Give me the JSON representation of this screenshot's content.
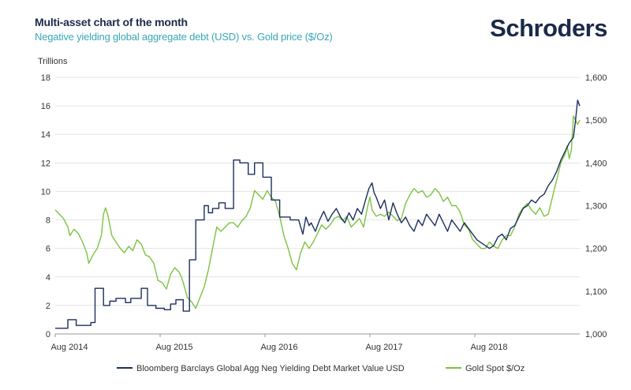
{
  "header": {
    "title": "Multi-asset chart of the month",
    "subtitle": "Negative yielding global aggregate debt (USD) vs. Gold price ($/Oz)",
    "brand": "Schroders"
  },
  "chart_data": {
    "type": "line",
    "title": "Multi-asset chart of the month",
    "subtitle": "Negative yielding global aggregate debt (USD) vs. Gold price ($/Oz)",
    "y_left_label": "Trillions",
    "y_left_lim": [
      0,
      18
    ],
    "y_left_ticks": [
      "0",
      "2",
      "4",
      "6",
      "8",
      "10",
      "12",
      "14",
      "16",
      "18"
    ],
    "y_right_lim": [
      1000,
      1600
    ],
    "y_right_ticks": [
      "1,000",
      "1,100",
      "1,200",
      "1,300",
      "1,400",
      "1,500",
      "1,600"
    ],
    "x_range": [
      2014.58,
      2019.58
    ],
    "x_ticks": [
      {
        "label": "Aug 2014",
        "x": 2014.58
      },
      {
        "label": "Aug 2015",
        "x": 2015.58
      },
      {
        "label": "Aug 2016",
        "x": 2016.58
      },
      {
        "label": "Aug 2017",
        "x": 2017.58
      },
      {
        "label": "Aug 2018",
        "x": 2018.58
      }
    ],
    "grid": true,
    "series": [
      {
        "name": "Bloomberg Barclays Global Agg Neg Yielding Debt Market Value USD",
        "color": "#1c2f5e",
        "axis": "left",
        "x": [
          2014.58,
          2014.66,
          2014.7,
          2014.7,
          2014.78,
          2014.78,
          2014.92,
          2014.92,
          2014.96,
          2014.96,
          2015.04,
          2015.04,
          2015.1,
          2015.1,
          2015.16,
          2015.16,
          2015.25,
          2015.25,
          2015.3,
          2015.3,
          2015.4,
          2015.4,
          2015.46,
          2015.46,
          2015.54,
          2015.54,
          2015.62,
          2015.62,
          2015.68,
          2015.68,
          2015.73,
          2015.73,
          2015.8,
          2015.8,
          2015.86,
          2015.86,
          2015.92,
          2015.92,
          2016.0,
          2016.0,
          2016.04,
          2016.04,
          2016.08,
          2016.08,
          2016.14,
          2016.14,
          2016.2,
          2016.2,
          2016.28,
          2016.28,
          2016.34,
          2016.34,
          2016.42,
          2016.42,
          2016.48,
          2016.48,
          2016.56,
          2016.56,
          2016.64,
          2016.64,
          2016.72,
          2016.72,
          2016.82,
          2016.82,
          2016.9,
          2016.94,
          2016.97,
          2017.0,
          2017.02,
          2017.06,
          2017.1,
          2017.14,
          2017.18,
          2017.22,
          2017.26,
          2017.3,
          2017.34,
          2017.38,
          2017.42,
          2017.46,
          2017.5,
          2017.53,
          2017.57,
          2017.6,
          2017.62,
          2017.64,
          2017.68,
          2017.72,
          2017.76,
          2017.8,
          2017.84,
          2017.88,
          2017.92,
          2017.96,
          2018.0,
          2018.04,
          2018.08,
          2018.12,
          2018.16,
          2018.2,
          2018.24,
          2018.28,
          2018.32,
          2018.36,
          2018.4,
          2018.44,
          2018.48,
          2018.52,
          2018.56,
          2018.6,
          2018.64,
          2018.68,
          2018.72,
          2018.76,
          2018.8,
          2018.84,
          2018.88,
          2018.92,
          2018.96,
          2019.0,
          2019.04,
          2019.08,
          2019.12,
          2019.16,
          2019.2,
          2019.24,
          2019.28,
          2019.32,
          2019.36,
          2019.4,
          2019.44,
          2019.48,
          2019.52,
          2019.54,
          2019.56,
          2019.58
        ],
        "values": [
          0.4,
          0.4,
          0.4,
          1.0,
          1.0,
          0.6,
          0.6,
          0.8,
          0.8,
          3.2,
          3.2,
          2.0,
          2.0,
          2.3,
          2.3,
          2.5,
          2.5,
          2.2,
          2.2,
          2.5,
          2.5,
          3.2,
          3.2,
          2.0,
          2.0,
          1.8,
          1.8,
          1.7,
          1.7,
          2.1,
          2.1,
          2.4,
          2.4,
          1.6,
          1.6,
          5.2,
          5.2,
          8.0,
          8.0,
          9.0,
          9.0,
          8.5,
          8.5,
          8.8,
          8.8,
          9.2,
          9.2,
          8.8,
          8.8,
          12.2,
          12.2,
          12.0,
          12.0,
          11.2,
          11.2,
          12.0,
          12.0,
          11.0,
          11.0,
          9.4,
          9.4,
          8.2,
          8.2,
          8.0,
          8.0,
          7.0,
          8.2,
          7.6,
          7.8,
          7.2,
          8.0,
          8.6,
          7.9,
          8.4,
          8.8,
          8.2,
          7.8,
          8.5,
          8.0,
          8.8,
          8.4,
          9.2,
          10.2,
          10.6,
          9.9,
          9.6,
          8.8,
          9.4,
          8.0,
          9.2,
          8.4,
          7.8,
          8.2,
          7.6,
          7.2,
          8.0,
          7.6,
          8.4,
          8.0,
          7.6,
          8.4,
          7.8,
          7.2,
          8.0,
          7.6,
          7.2,
          7.8,
          7.4,
          7.0,
          6.6,
          6.4,
          6.2,
          6.0,
          6.2,
          6.8,
          7.0,
          6.6,
          7.4,
          7.6,
          8.2,
          8.8,
          9.0,
          9.4,
          9.2,
          9.6,
          9.8,
          10.4,
          10.8,
          11.4,
          12.2,
          12.8,
          13.4,
          13.8,
          15.0,
          16.4,
          16.0
        ]
      },
      {
        "name": "Gold Spot $/Oz",
        "color": "#7dc242",
        "axis": "right",
        "x": [
          2014.58,
          2014.62,
          2014.66,
          2014.7,
          2014.72,
          2014.76,
          2014.8,
          2014.84,
          2014.88,
          2014.9,
          2014.94,
          2014.98,
          2015.02,
          2015.04,
          2015.06,
          2015.08,
          2015.12,
          2015.16,
          2015.2,
          2015.24,
          2015.28,
          2015.32,
          2015.36,
          2015.4,
          2015.44,
          2015.48,
          2015.52,
          2015.56,
          2015.6,
          2015.64,
          2015.68,
          2015.72,
          2015.76,
          2015.78,
          2015.8,
          2015.84,
          2015.88,
          2015.92,
          2015.96,
          2016.0,
          2016.04,
          2016.08,
          2016.12,
          2016.16,
          2016.2,
          2016.24,
          2016.28,
          2016.32,
          2016.36,
          2016.4,
          2016.44,
          2016.48,
          2016.52,
          2016.56,
          2016.6,
          2016.64,
          2016.68,
          2016.72,
          2016.76,
          2016.8,
          2016.84,
          2016.88,
          2016.92,
          2016.96,
          2017.0,
          2017.04,
          2017.08,
          2017.12,
          2017.16,
          2017.2,
          2017.24,
          2017.28,
          2017.32,
          2017.36,
          2017.4,
          2017.44,
          2017.48,
          2017.52,
          2017.56,
          2017.58,
          2017.6,
          2017.64,
          2017.68,
          2017.72,
          2017.76,
          2017.8,
          2017.84,
          2017.88,
          2017.92,
          2017.96,
          2018.0,
          2018.04,
          2018.08,
          2018.12,
          2018.16,
          2018.2,
          2018.24,
          2018.28,
          2018.32,
          2018.36,
          2018.4,
          2018.44,
          2018.48,
          2018.52,
          2018.56,
          2018.6,
          2018.64,
          2018.68,
          2018.72,
          2018.76,
          2018.8,
          2018.84,
          2018.88,
          2018.92,
          2018.96,
          2019.0,
          2019.04,
          2019.08,
          2019.12,
          2019.16,
          2019.2,
          2019.24,
          2019.28,
          2019.32,
          2019.36,
          2019.4,
          2019.44,
          2019.46,
          2019.48,
          2019.5,
          2019.52,
          2019.54,
          2019.56,
          2019.58
        ],
        "values": [
          1290,
          1280,
          1270,
          1250,
          1230,
          1245,
          1235,
          1215,
          1190,
          1165,
          1185,
          1200,
          1230,
          1280,
          1295,
          1280,
          1230,
          1215,
          1200,
          1190,
          1205,
          1195,
          1220,
          1210,
          1185,
          1180,
          1165,
          1125,
          1120,
          1105,
          1140,
          1155,
          1145,
          1135,
          1120,
          1085,
          1075,
          1060,
          1085,
          1110,
          1150,
          1200,
          1250,
          1240,
          1250,
          1260,
          1260,
          1250,
          1265,
          1275,
          1295,
          1335,
          1325,
          1315,
          1335,
          1320,
          1310,
          1275,
          1230,
          1200,
          1165,
          1150,
          1190,
          1215,
          1200,
          1215,
          1235,
          1255,
          1245,
          1255,
          1270,
          1275,
          1265,
          1275,
          1250,
          1260,
          1270,
          1250,
          1300,
          1320,
          1290,
          1275,
          1280,
          1275,
          1285,
          1275,
          1265,
          1270,
          1305,
          1325,
          1340,
          1330,
          1335,
          1320,
          1325,
          1340,
          1330,
          1310,
          1320,
          1300,
          1300,
          1285,
          1255,
          1245,
          1220,
          1210,
          1200,
          1200,
          1215,
          1205,
          1200,
          1220,
          1230,
          1230,
          1250,
          1280,
          1295,
          1305,
          1290,
          1280,
          1295,
          1275,
          1280,
          1320,
          1360,
          1400,
          1420,
          1440,
          1410,
          1430,
          1510,
          1500,
          1490,
          1500
        ]
      }
    ]
  },
  "legend": {
    "debt_label": "Bloomberg Barclays Global Agg Neg Yielding Debt Market Value USD",
    "gold_label": "Gold Spot $/Oz"
  }
}
